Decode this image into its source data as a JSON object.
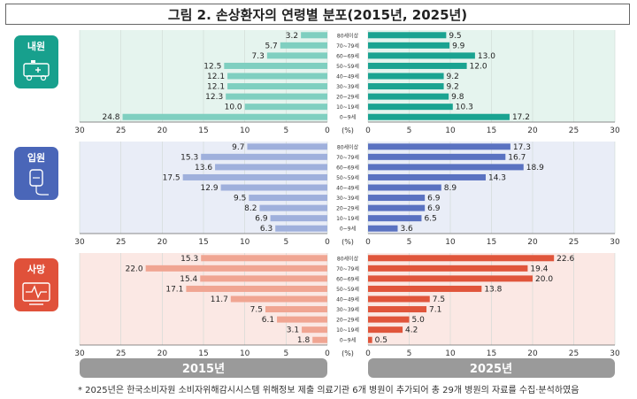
{
  "title": "그림 2. 손상환자의 연령별 분포(2015년, 2025년)",
  "footnote": "* 2025년은 한국소비자원 소비자위해감시시스템 위해정보 제출 의료기관 6개 병원이 추가되어 총 29개 병원의 자료를 수집·분석하였음",
  "year_labels": {
    "left": "2015년",
    "right": "2025년"
  },
  "unit_label": "(%)",
  "colors": {
    "outpatient_bg": "#e5f4ee",
    "outpatient_2015": "#7fcfc0",
    "outpatient_2025": "#1aa391",
    "outpatient_icon": "#17a08d",
    "inpatient_bg": "#e9edf7",
    "inpatient_2015": "#9fb0dc",
    "inpatient_2025": "#5a72c1",
    "inpatient_icon": "#4a66b8",
    "death_bg": "#fbe8e4",
    "death_2015": "#f0a592",
    "death_2025": "#e0553b",
    "death_icon": "#e0513a",
    "year_bar": "#9a9a9a"
  },
  "chart_data": [
    {
      "type": "bar",
      "orientation": "horizontal-butterfly",
      "panel": "내원",
      "icon": "ambulance-icon",
      "categories": [
        "80세이상",
        "70~79세",
        "60~69세",
        "50~59세",
        "40~49세",
        "30~39세",
        "20~29세",
        "10~19세",
        "0~9세"
      ],
      "series": [
        {
          "name": "2015년",
          "values": [
            3.2,
            5.7,
            7.3,
            12.5,
            12.1,
            12.1,
            12.3,
            10.0,
            24.8
          ]
        },
        {
          "name": "2025년",
          "values": [
            9.5,
            9.9,
            13.0,
            12.0,
            9.2,
            9.2,
            9.8,
            10.3,
            17.2
          ]
        }
      ],
      "xlim": [
        0,
        30
      ],
      "ticks": [
        30,
        25,
        20,
        15,
        10,
        5,
        0
      ],
      "grid": true
    },
    {
      "type": "bar",
      "orientation": "horizontal-butterfly",
      "panel": "입원",
      "icon": "iv-drip-icon",
      "categories": [
        "80세이상",
        "70~79세",
        "60~69세",
        "50~59세",
        "40~49세",
        "30~39세",
        "20~29세",
        "10~19세",
        "0~9세"
      ],
      "series": [
        {
          "name": "2015년",
          "values": [
            9.7,
            15.3,
            13.6,
            17.5,
            12.9,
            9.5,
            8.2,
            6.9,
            6.3
          ]
        },
        {
          "name": "2025년",
          "values": [
            17.3,
            16.7,
            18.9,
            14.3,
            8.9,
            6.9,
            6.9,
            6.5,
            3.6
          ]
        }
      ],
      "xlim": [
        0,
        30
      ],
      "ticks": [
        30,
        25,
        20,
        15,
        10,
        5,
        0
      ],
      "grid": true
    },
    {
      "type": "bar",
      "orientation": "horizontal-butterfly",
      "panel": "사망",
      "icon": "heart-monitor-icon",
      "categories": [
        "80세이상",
        "70~79세",
        "60~69세",
        "50~59세",
        "40~49세",
        "30~39세",
        "20~29세",
        "10~19세",
        "0~9세"
      ],
      "series": [
        {
          "name": "2015년",
          "values": [
            15.3,
            22.0,
            15.4,
            17.1,
            11.7,
            7.5,
            6.1,
            3.1,
            1.8
          ]
        },
        {
          "name": "2025년",
          "values": [
            22.6,
            19.4,
            20.0,
            13.8,
            7.5,
            7.1,
            5.0,
            4.2,
            0.5
          ]
        }
      ],
      "xlim": [
        0,
        30
      ],
      "ticks": [
        30,
        25,
        20,
        15,
        10,
        5,
        0
      ],
      "grid": true
    }
  ]
}
